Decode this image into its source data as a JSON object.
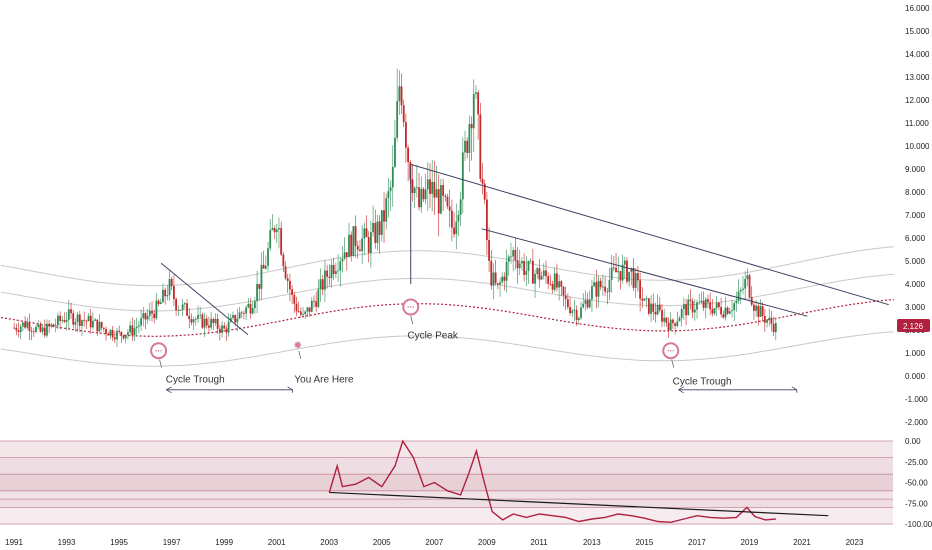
{
  "chart_data": [
    {
      "type": "candlestick",
      "title": "",
      "x_range": [
        1990.5,
        2024.5
      ],
      "ylim": [
        -2.8,
        16.4
      ],
      "y_ticks": [
        "16.000",
        "15.000",
        "14.000",
        "13.000",
        "12.000",
        "11.000",
        "10.000",
        "9.000",
        "8.000",
        "7.000",
        "6.000",
        "5.000",
        "4.000",
        "3.000",
        "2.000",
        "1.000",
        "0.000",
        "-1.000",
        "-2.000"
      ],
      "y_tick_values": [
        16,
        15,
        14,
        13,
        12,
        11,
        10,
        9,
        8,
        7,
        6,
        5,
        4,
        3,
        2,
        1,
        0,
        -1,
        -2
      ],
      "x_ticks": [
        "1991",
        "1993",
        "1995",
        "1997",
        "1999",
        "2001",
        "2003",
        "2005",
        "2007",
        "2009",
        "2011",
        "2013",
        "2015",
        "2017",
        "2019",
        "2021",
        "2023"
      ],
      "x_tick_values": [
        1991,
        1993,
        1995,
        1997,
        1999,
        2001,
        2003,
        2005,
        2007,
        2009,
        2011,
        2013,
        2015,
        2017,
        2019,
        2021,
        2023
      ],
      "last_price": "2.126",
      "last_value": 2.126,
      "colors": {
        "up": "#2e8b57",
        "down": "#c62828",
        "cycle": "#b0203f",
        "trend": "#3d4260",
        "marker": "#d67a96"
      },
      "series": [
        {
          "values": [
            [
              1991.0,
              2.1
            ],
            [
              1991.5,
              2.3
            ],
            [
              1992.0,
              1.9
            ],
            [
              1992.5,
              2.2
            ],
            [
              1993.0,
              2.6
            ],
            [
              1993.5,
              2.5
            ],
            [
              1994.0,
              2.3
            ],
            [
              1994.5,
              2.0
            ],
            [
              1995.0,
              1.8
            ],
            [
              1995.5,
              2.0
            ],
            [
              1996.0,
              2.5
            ],
            [
              1996.5,
              3.0
            ],
            [
              1996.9,
              3.9
            ],
            [
              1997.2,
              3.1
            ],
            [
              1997.6,
              2.8
            ],
            [
              1998.0,
              2.4
            ],
            [
              1998.5,
              2.3
            ],
            [
              1999.0,
              2.0
            ],
            [
              1999.5,
              2.6
            ],
            [
              2000.0,
              3.1
            ],
            [
              2000.5,
              4.6
            ],
            [
              2001.0,
              7.0
            ],
            [
              2001.3,
              4.8
            ],
            [
              2001.6,
              3.3
            ],
            [
              2002.0,
              2.5
            ],
            [
              2002.5,
              3.4
            ],
            [
              2003.0,
              4.6
            ],
            [
              2003.5,
              5.4
            ],
            [
              2004.0,
              6.0
            ],
            [
              2004.5,
              5.8
            ],
            [
              2005.0,
              6.6
            ],
            [
              2005.4,
              8.4
            ],
            [
              2005.7,
              13.2
            ],
            [
              2006.0,
              9.6
            ],
            [
              2006.4,
              7.3
            ],
            [
              2006.8,
              8.2
            ],
            [
              2007.3,
              7.5
            ],
            [
              2007.7,
              6.4
            ],
            [
              2008.0,
              8.3
            ],
            [
              2008.5,
              12.6
            ],
            [
              2008.8,
              8.7
            ],
            [
              2009.1,
              4.5
            ],
            [
              2009.4,
              3.7
            ],
            [
              2009.8,
              4.9
            ],
            [
              2010.0,
              5.4
            ],
            [
              2010.5,
              4.6
            ],
            [
              2011.0,
              4.4
            ],
            [
              2011.5,
              4.2
            ],
            [
              2012.0,
              3.2
            ],
            [
              2012.5,
              2.7
            ],
            [
              2013.0,
              3.7
            ],
            [
              2013.5,
              4.0
            ],
            [
              2014.0,
              4.6
            ],
            [
              2014.5,
              4.5
            ],
            [
              2015.0,
              3.1
            ],
            [
              2015.5,
              2.8
            ],
            [
              2016.0,
              2.2
            ],
            [
              2016.5,
              2.9
            ],
            [
              2017.0,
              3.1
            ],
            [
              2017.5,
              3.0
            ],
            [
              2018.0,
              2.9
            ],
            [
              2018.5,
              3.2
            ],
            [
              2018.9,
              4.2
            ],
            [
              2019.2,
              3.0
            ],
            [
              2019.6,
              2.5
            ],
            [
              2020.0,
              2.126
            ]
          ]
        }
      ],
      "annotations": [
        {
          "text": "Cycle Trough",
          "x": 1997.0,
          "y": -0.1
        },
        {
          "text": "You Are Here",
          "x": 2001.9,
          "y": -0.1
        },
        {
          "text": "Cycle Peak",
          "x": 2006.2,
          "y": 1.8
        },
        {
          "text": "Cycle Trough",
          "x": 2016.3,
          "y": -0.2
        }
      ]
    },
    {
      "type": "line",
      "title": "",
      "ylim": [
        -101,
        2
      ],
      "y_ticks": [
        "0.00",
        "-25.00",
        "-50.00",
        "-75.00",
        "-100.00"
      ],
      "y_tick_values": [
        0,
        -25,
        -50,
        -75,
        -100
      ],
      "band_levels": [
        0,
        -20,
        -40,
        -60,
        -70,
        -80,
        -100
      ],
      "series": [
        {
          "values": [
            [
              2003.0,
              -62
            ],
            [
              2003.3,
              -30
            ],
            [
              2003.5,
              -55
            ],
            [
              2004.0,
              -52
            ],
            [
              2004.5,
              -44
            ],
            [
              2005.0,
              -55
            ],
            [
              2005.5,
              -30
            ],
            [
              2005.8,
              0
            ],
            [
              2006.2,
              -20
            ],
            [
              2006.6,
              -55
            ],
            [
              2007.0,
              -50
            ],
            [
              2007.5,
              -60
            ],
            [
              2008.0,
              -65
            ],
            [
              2008.3,
              -40
            ],
            [
              2008.6,
              -12
            ],
            [
              2008.9,
              -50
            ],
            [
              2009.2,
              -85
            ],
            [
              2009.6,
              -95
            ],
            [
              2010.0,
              -88
            ],
            [
              2010.5,
              -92
            ],
            [
              2011.0,
              -88
            ],
            [
              2011.5,
              -90
            ],
            [
              2012.0,
              -92
            ],
            [
              2012.5,
              -97
            ],
            [
              2013.0,
              -94
            ],
            [
              2013.5,
              -92
            ],
            [
              2014.0,
              -88
            ],
            [
              2014.5,
              -90
            ],
            [
              2015.0,
              -93
            ],
            [
              2015.5,
              -97
            ],
            [
              2016.0,
              -98
            ],
            [
              2016.5,
              -94
            ],
            [
              2017.0,
              -90
            ],
            [
              2017.5,
              -92
            ],
            [
              2018.0,
              -93
            ],
            [
              2018.5,
              -92
            ],
            [
              2018.9,
              -80
            ],
            [
              2019.2,
              -91
            ],
            [
              2019.6,
              -95
            ],
            [
              2020.0,
              -94
            ]
          ]
        }
      ]
    }
  ]
}
